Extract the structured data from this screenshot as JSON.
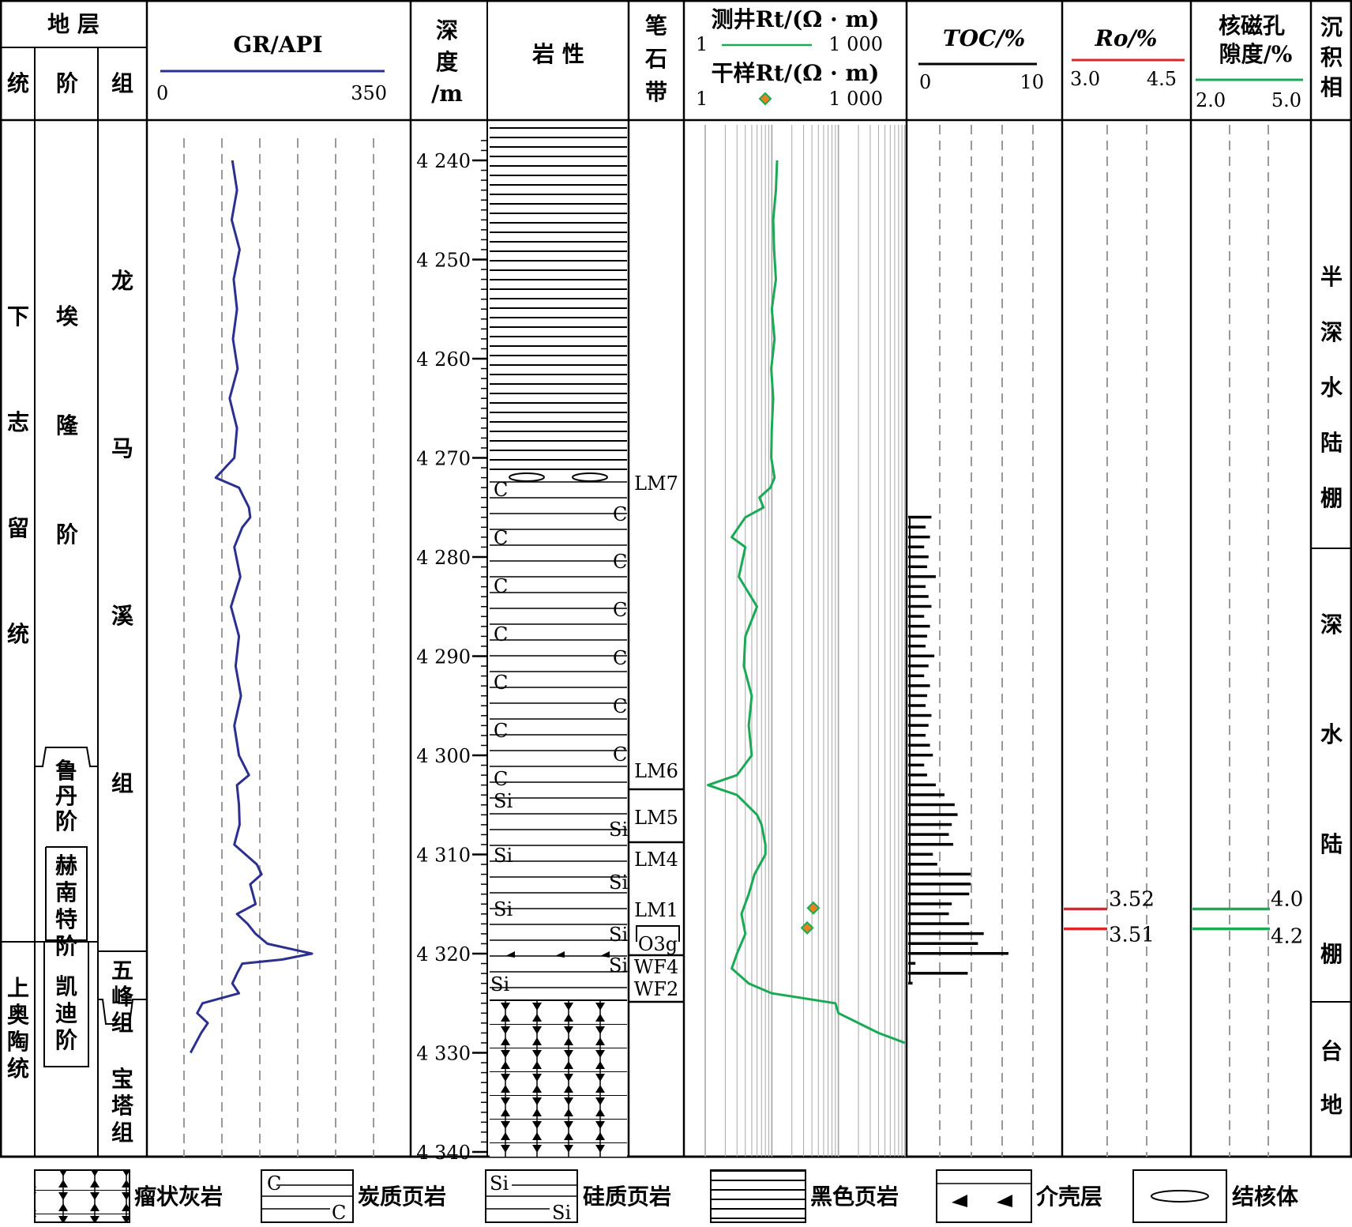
{
  "header": {
    "strata": "地 层",
    "series": "统",
    "stage": "阶",
    "formation": "组",
    "gr_title": "GR/API",
    "gr_min": "0",
    "gr_max": "350",
    "depth_title_1": "深",
    "depth_title_2": "度",
    "depth_title_3": "/m",
    "lithology": "岩 性",
    "graptolite_1": "笔",
    "graptolite_2": "石",
    "graptolite_3": "带",
    "rt_log_title": "测井Rt/(Ω · m)",
    "rt_log_min": "1",
    "rt_log_max": "1 000",
    "rt_core_title": "干样Rt/(Ω · m)",
    "rt_core_min": "1",
    "rt_core_max": "1 000",
    "toc_title": "TOC/%",
    "toc_min": "0",
    "toc_max": "10",
    "ro_title": "Ro/%",
    "ro_min": "3.0",
    "ro_max": "4.5",
    "nmr_title_1": "核磁孔",
    "nmr_title_2": "隙度/%",
    "nmr_min": "2.0",
    "nmr_max": "5.0",
    "facies_1": "沉",
    "facies_2": "积",
    "facies_3": "相"
  },
  "strata": {
    "series_upper": "下志留统",
    "series_lower": "上奥陶统",
    "stage_aeronian": "埃隆阶",
    "stage_rhuddanian": "鲁丹阶",
    "stage_hirnantian": "赫南特阶",
    "stage_katian": "凯迪阶",
    "formation_longmaxi": "龙马溪组",
    "formation_wufeng": "五峰组",
    "formation_baota": "宝塔组"
  },
  "depth_ticks": [
    "4 240",
    "4 250",
    "4 260",
    "4 270",
    "4 280",
    "4 290",
    "4 300",
    "4 310",
    "4 320",
    "4 330",
    "4 340"
  ],
  "graptolite_zones": [
    "LM7",
    "LM6",
    "LM5",
    "LM4",
    "LM1",
    "O3g",
    "WF4",
    "WF2"
  ],
  "lithology_marks": {
    "carbon": "C",
    "silica": "Si"
  },
  "facies": {
    "semi_deep_shelf": "半深水陆棚",
    "deep_shelf": "深水陆棚",
    "platform": "台地"
  },
  "measurements": {
    "ro_values": [
      "3.52",
      "3.51"
    ],
    "nmr_values": [
      "4.0",
      "4.2"
    ]
  },
  "legend": {
    "nodular_limestone": "瘤状灰岩",
    "carbonaceous_shale": "炭质页岩",
    "siliceous_shale": "硅质页岩",
    "black_shale": "黑色页岩",
    "shell_layer": "介壳层",
    "nodule": "结核体"
  },
  "colors": {
    "gr": "#2b3090",
    "rt": "#1aaa55",
    "ro": "#e0242b",
    "nmr": "#1aaa55",
    "core_marker_fill": "#e8821e",
    "core_marker_edge": "#1aaa55",
    "grid": "#999999"
  },
  "chart_data": {
    "type": "line",
    "depth_range": [
      4237,
      4341
    ],
    "gr_range": [
      0,
      350
    ],
    "rt_scale": "log",
    "rt_range": [
      1,
      1000
    ],
    "toc_range": [
      0,
      10
    ],
    "ro_range": [
      3.0,
      4.5
    ],
    "nmr_range": [
      2.0,
      5.0
    ],
    "ro_points": [
      {
        "depth": 4315.5,
        "value": 3.52
      },
      {
        "depth": 4317.5,
        "value": 3.51
      }
    ],
    "nmr_points": [
      {
        "depth": 4315.5,
        "value": 4.0
      },
      {
        "depth": 4317.5,
        "value": 4.2
      }
    ],
    "core_rt_points": [
      {
        "depth": 4315.4,
        "value": 42
      },
      {
        "depth": 4317.4,
        "value": 34
      }
    ],
    "gr_curve": [
      [
        4240,
        105
      ],
      [
        4243,
        112
      ],
      [
        4246,
        104
      ],
      [
        4249,
        116
      ],
      [
        4252,
        107
      ],
      [
        4255,
        112
      ],
      [
        4258,
        106
      ],
      [
        4261,
        113
      ],
      [
        4264,
        101
      ],
      [
        4267,
        112
      ],
      [
        4270,
        108
      ],
      [
        4272,
        80
      ],
      [
        4273,
        115
      ],
      [
        4275,
        130
      ],
      [
        4276,
        132
      ],
      [
        4277,
        120
      ],
      [
        4279,
        108
      ],
      [
        4282,
        117
      ],
      [
        4285,
        103
      ],
      [
        4288,
        115
      ],
      [
        4291,
        110
      ],
      [
        4294,
        118
      ],
      [
        4297,
        108
      ],
      [
        4300,
        115
      ],
      [
        4302,
        130
      ],
      [
        4303,
        112
      ],
      [
        4305,
        115
      ],
      [
        4307,
        116
      ],
      [
        4309,
        108
      ],
      [
        4311,
        142
      ],
      [
        4312,
        149
      ],
      [
        4313,
        132
      ],
      [
        4315,
        140
      ],
      [
        4316,
        112
      ],
      [
        4317,
        128
      ],
      [
        4318,
        140
      ],
      [
        4319,
        158
      ],
      [
        4320,
        225
      ],
      [
        4320.6,
        180
      ],
      [
        4321,
        120
      ],
      [
        4322,
        112
      ],
      [
        4323,
        105
      ],
      [
        4324,
        115
      ],
      [
        4325,
        60
      ],
      [
        4326,
        52
      ],
      [
        4327,
        68
      ],
      [
        4328,
        58
      ],
      [
        4330,
        42
      ]
    ],
    "rt_curve": [
      [
        4240,
        12
      ],
      [
        4243,
        11.5
      ],
      [
        4246,
        10.5
      ],
      [
        4249,
        10.8
      ],
      [
        4252,
        11.5
      ],
      [
        4255,
        10
      ],
      [
        4258,
        11
      ],
      [
        4261,
        9.8
      ],
      [
        4264,
        10.5
      ],
      [
        4267,
        10
      ],
      [
        4270,
        9.8
      ],
      [
        4272,
        11
      ],
      [
        4273,
        9.5
      ],
      [
        4274,
        6.5
      ],
      [
        4275,
        7.5
      ],
      [
        4276,
        4
      ],
      [
        4278,
        2.5
      ],
      [
        4279,
        4
      ],
      [
        4282,
        3.2
      ],
      [
        4285,
        6
      ],
      [
        4288,
        4
      ],
      [
        4291,
        3.8
      ],
      [
        4294,
        5
      ],
      [
        4297,
        4.5
      ],
      [
        4300,
        5
      ],
      [
        4302,
        3
      ],
      [
        4303,
        1.1
      ],
      [
        4304,
        3
      ],
      [
        4306,
        6
      ],
      [
        4307,
        7
      ],
      [
        4309,
        8
      ],
      [
        4310,
        8
      ],
      [
        4312,
        5.5
      ],
      [
        4314,
        4.5
      ],
      [
        4316,
        3.5
      ],
      [
        4318,
        4
      ],
      [
        4320,
        3
      ],
      [
        4321.5,
        2.5
      ],
      [
        4323,
        4.5
      ],
      [
        4324,
        10
      ],
      [
        4325,
        90
      ],
      [
        4326,
        100
      ],
      [
        4327,
        200
      ],
      [
        4328,
        400
      ],
      [
        4329,
        1000
      ]
    ],
    "toc_bars": [
      [
        4276,
        1.6
      ],
      [
        4277,
        1.2
      ],
      [
        4278,
        1.5
      ],
      [
        4279,
        1.1
      ],
      [
        4280,
        1.4
      ],
      [
        4281,
        1.3
      ],
      [
        4282,
        1.9
      ],
      [
        4283,
        1.2
      ],
      [
        4284,
        1.4
      ],
      [
        4285,
        1.6
      ],
      [
        4286,
        1.1
      ],
      [
        4287,
        1.5
      ],
      [
        4288,
        1.3
      ],
      [
        4289,
        1.2
      ],
      [
        4290,
        1.8
      ],
      [
        4291,
        1.4
      ],
      [
        4292,
        1.1
      ],
      [
        4293,
        1.5
      ],
      [
        4294,
        1.3
      ],
      [
        4295,
        1.2
      ],
      [
        4296,
        1.6
      ],
      [
        4297,
        1.4
      ],
      [
        4298,
        1.2
      ],
      [
        4299,
        1.5
      ],
      [
        4300,
        1.7
      ],
      [
        4301,
        1.1
      ],
      [
        4302,
        1.3
      ],
      [
        4303,
        1.9
      ],
      [
        4304,
        2.5
      ],
      [
        4305,
        3.2
      ],
      [
        4306,
        3.4
      ],
      [
        4307,
        3.0
      ],
      [
        4308,
        2.8
      ],
      [
        4309,
        3.1
      ],
      [
        4310,
        1.7
      ],
      [
        4311,
        2.0
      ],
      [
        4312,
        4.3
      ],
      [
        4313,
        4.3
      ],
      [
        4314,
        4.2
      ],
      [
        4315,
        3.0
      ],
      [
        4316,
        2.8
      ],
      [
        4317,
        4.2
      ],
      [
        4318,
        5.2
      ],
      [
        4319,
        4.8
      ],
      [
        4320,
        6.9
      ],
      [
        4321,
        0.5
      ],
      [
        4322,
        4.1
      ],
      [
        4323,
        0.3
      ]
    ]
  }
}
